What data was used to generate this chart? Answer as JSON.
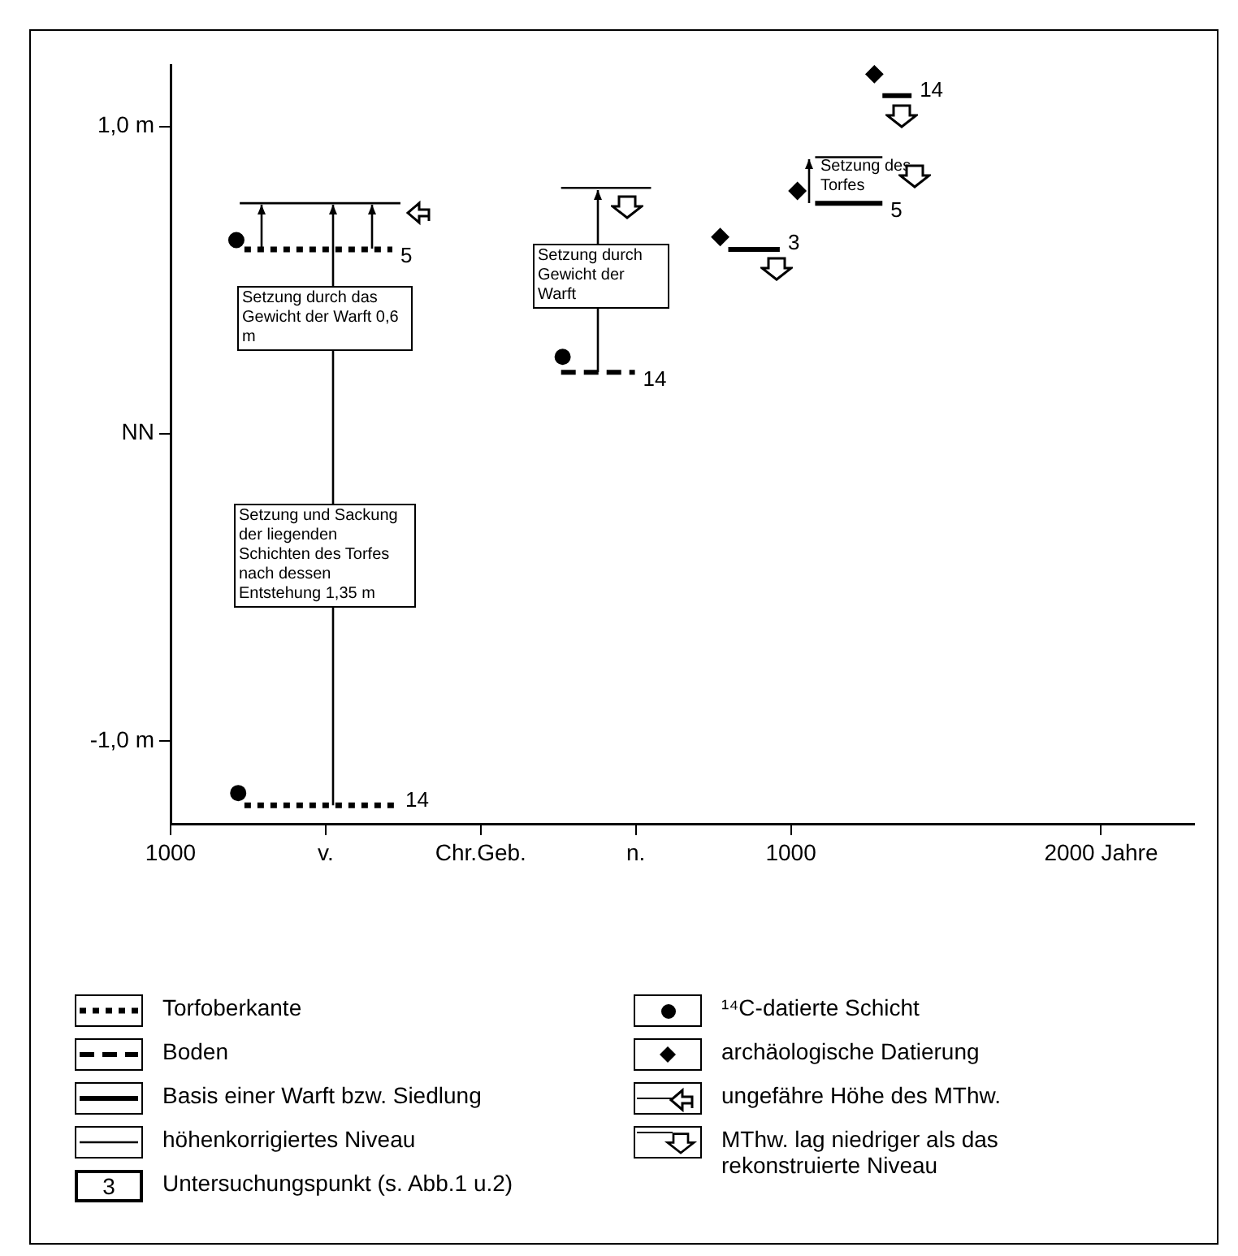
{
  "chart_data": {
    "type": "line",
    "xlim": [
      -1000,
      2300
    ],
    "ylim": [
      -1.27,
      1.2
    ],
    "xticks": [
      {
        "value": -1000,
        "label": "1000"
      },
      {
        "value": -500,
        "label": "v."
      },
      {
        "value": 0,
        "label": "Chr.Geb."
      },
      {
        "value": 500,
        "label": "n."
      },
      {
        "value": 1000,
        "label": "1000"
      },
      {
        "value": 2000,
        "label": "2000 Jahre"
      }
    ],
    "yticks": [
      {
        "value": 1,
        "label": "1,0 m"
      },
      {
        "value": 0,
        "label": "NN"
      },
      {
        "value": -1,
        "label": "-1,0 m"
      }
    ],
    "grid": false,
    "legend": "bottom",
    "series": [
      {
        "name": "Torfoberkante",
        "color": "#000000",
        "line_style": "dotted",
        "marker": "none",
        "x": [
          -762,
          -285,
          null,
          -762,
          -269
        ],
        "values": [
          0.6,
          0.6,
          null,
          -1.21,
          -1.21
        ]
      },
      {
        "name": "Boden",
        "color": "#000000",
        "line_style": "dashed",
        "marker": "none",
        "x": [
          259,
          497
        ],
        "values": [
          0.2,
          0.2
        ]
      },
      {
        "name": "Basis einer Warft bzw. Siedlung",
        "color": "#000000",
        "line_style": "solid",
        "marker": "none",
        "x": [
          798,
          964,
          null,
          1078,
          1295,
          null,
          1295,
          1389
        ],
        "values": [
          0.6,
          0.6,
          null,
          0.75,
          0.75,
          null,
          1.1,
          1.1
        ]
      },
      {
        "name": "höhenkorrigiertes Niveau",
        "color": "#000000",
        "line_style": "solid",
        "marker": "none",
        "x": [
          -777,
          -259,
          null,
          259,
          549,
          null,
          1078,
          1295
        ],
        "values": [
          0.75,
          0.75,
          null,
          0.8,
          0.8,
          null,
          0.9,
          0.9
        ]
      },
      {
        "name": "¹⁴C-datierte Schicht",
        "type": "scatter",
        "color": "#000000",
        "marker": "circle",
        "x": [
          -788,
          264,
          -782
        ],
        "values": [
          0.63,
          0.25,
          -1.17
        ]
      },
      {
        "name": "archäologische Datierung",
        "type": "scatter",
        "color": "#000000",
        "marker": "diamond",
        "x": [
          772,
          1021,
          1269
        ],
        "values": [
          0.64,
          0.79,
          1.17
        ]
      }
    ],
    "annotations": [
      {
        "text": "5",
        "x": -285,
        "y": 0.6
      },
      {
        "text": "14",
        "x": -269,
        "y": -1.21
      },
      {
        "text": "14",
        "x": 497,
        "y": 0.2
      },
      {
        "text": "3",
        "x": 964,
        "y": 0.6
      },
      {
        "text": "5",
        "x": 1295,
        "y": 0.75
      },
      {
        "text": "14",
        "x": 1389,
        "y": 1.1
      },
      "Setzung durch das Gewicht der Warft 0,6 m",
      "Setzung durch Gewicht der Warft",
      "Setzung und Sackung der liegenden Schichten des Torfes nach dessen Entstehung 1,35 m",
      "Setzung des Torfes",
      "ungefähre Höhe des MThw.",
      "MThw. lag niedriger als das rekonstruierte Niveau",
      "3",
      "Untersuchungspunkt (s. Abb.1 u.2)"
    ]
  }
}
